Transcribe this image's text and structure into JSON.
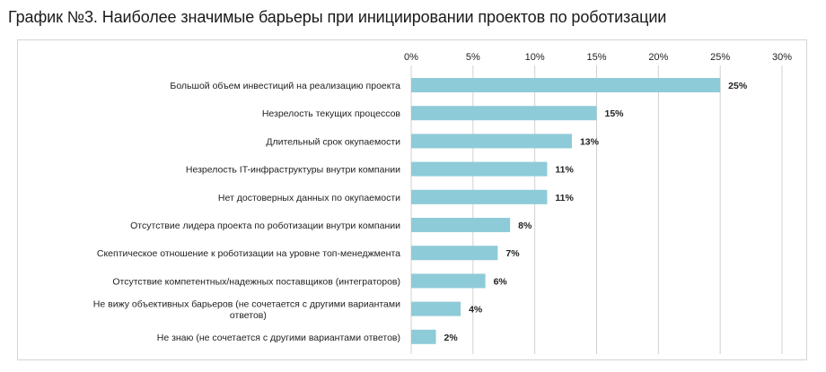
{
  "title": "График №3. Наиболее значимые барьеры при инициировании проектов по роботизации",
  "colors": {
    "bar": "#8ecbd8",
    "grid": "#d0d0d0",
    "frame": "#d4d4d4"
  },
  "chart_data": {
    "type": "bar",
    "orientation": "horizontal",
    "title": "",
    "xlabel": "",
    "ylabel": "",
    "xlim": [
      0,
      30
    ],
    "x_ticks": [
      "0%",
      "5%",
      "10%",
      "15%",
      "20%",
      "25%",
      "30%"
    ],
    "x_axis_position": "top",
    "grid": true,
    "legend": "none",
    "categories": [
      [
        "Большой объем инвестиций на реализацию проекта"
      ],
      [
        "Незрелость текущих процессов"
      ],
      [
        "Длительный срок окупаемости"
      ],
      [
        "Незрелость IT-инфраструктуры внутри компании"
      ],
      [
        "Нет достоверных данных по окупаемости"
      ],
      [
        "Отсутствие лидера проекта по роботизации внутри компании"
      ],
      [
        "Скептическое отношение к роботизации на уровне топ-менеджмента"
      ],
      [
        "Отсутствие компетентных/надежных поставщиков (интеграторов)"
      ],
      [
        "Не вижу объективных барьеров (не сочетается с другими вариантами",
        "ответов)"
      ],
      [
        "Не знаю (не сочетается с другими вариантами ответов)"
      ]
    ],
    "values": [
      25,
      15,
      13,
      11,
      11,
      8,
      7,
      6,
      4,
      2
    ],
    "value_labels": [
      "25%",
      "15%",
      "13%",
      "11%",
      "11%",
      "8%",
      "7%",
      "6%",
      "4%",
      "2%"
    ]
  }
}
